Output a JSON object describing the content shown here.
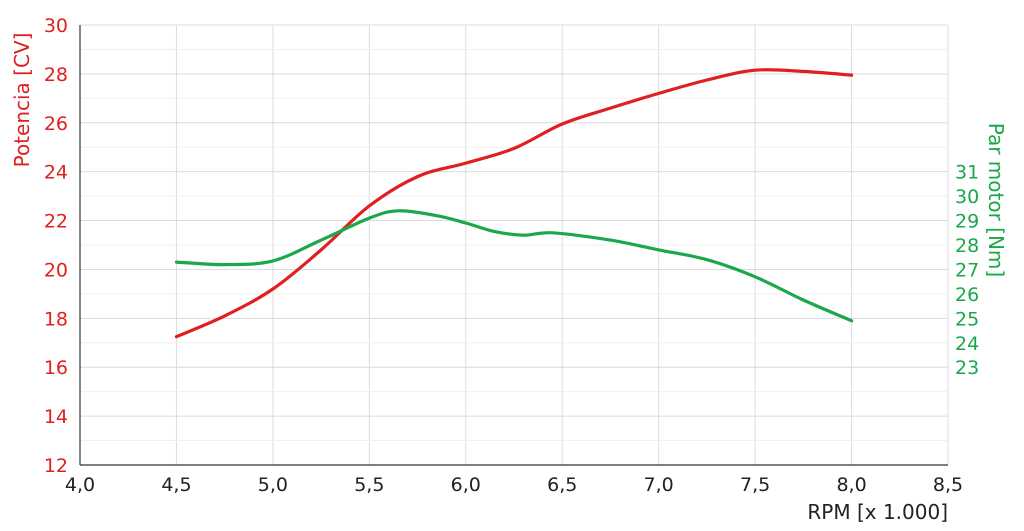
{
  "chart_data": {
    "type": "line",
    "xlabel": "RPM [x 1.000]",
    "ylabel_left": "Potencia [CV]",
    "ylabel_right": "Par motor [Nm]",
    "x_range": [
      4.0,
      8.5
    ],
    "x_ticks": [
      "4,0",
      "4,5",
      "5,0",
      "5,5",
      "6,0",
      "6,5",
      "7,0",
      "7,5",
      "8,0",
      "8,5"
    ],
    "y_left_range": [
      12,
      30
    ],
    "y_left_ticks": [
      "12",
      "14",
      "16",
      "18",
      "20",
      "22",
      "24",
      "26",
      "28",
      "30"
    ],
    "y_right_range": [
      19,
      37
    ],
    "y_right_ticks": [
      "23",
      "24",
      "25",
      "26",
      "27",
      "28",
      "29",
      "30",
      "31"
    ],
    "grid": true,
    "colors": {
      "left": "#e02020",
      "right": "#1aa84a"
    },
    "series": [
      {
        "axis": "left",
        "x": [
          4.5,
          4.75,
          5.0,
          5.25,
          5.5,
          5.75,
          6.0,
          6.25,
          6.5,
          6.75,
          7.0,
          7.25,
          7.5,
          7.75,
          8.0
        ],
        "values": [
          17.25,
          18.1,
          19.2,
          20.8,
          22.6,
          23.8,
          24.35,
          24.95,
          25.95,
          26.6,
          27.2,
          27.75,
          28.15,
          28.1,
          27.95
        ]
      },
      {
        "axis": "right",
        "x": [
          4.5,
          4.75,
          5.0,
          5.25,
          5.5,
          5.65,
          5.85,
          6.0,
          6.15,
          6.3,
          6.45,
          6.75,
          7.0,
          7.25,
          7.5,
          7.75,
          8.0
        ],
        "values": [
          27.3,
          27.2,
          27.35,
          28.2,
          29.1,
          29.4,
          29.2,
          28.9,
          28.55,
          28.4,
          28.5,
          28.2,
          27.8,
          27.4,
          26.7,
          25.75,
          24.9
        ]
      }
    ]
  }
}
